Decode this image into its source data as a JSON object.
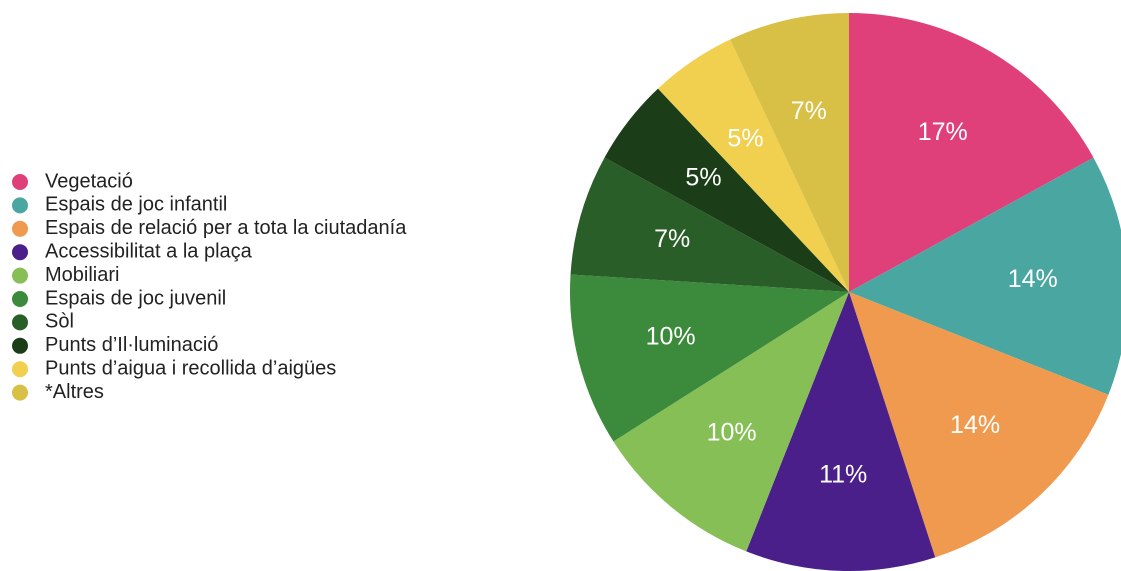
{
  "chart_data": {
    "type": "pie",
    "categories": [
      "Vegetació",
      "Espais de joc infantil",
      "Espais de relació per a tota la ciutadanía",
      "Accessibilitat a la plaça",
      "Mobiliari",
      "Espais de joc juvenil",
      "Sòl",
      "Punts d’Il·luminació",
      "Punts d’aigua i recollida d’aigües",
      "*Altres"
    ],
    "values": [
      17,
      14,
      14,
      11,
      10,
      10,
      7,
      5,
      5,
      7
    ],
    "value_labels": [
      "17%",
      "14%",
      "14%",
      "11%",
      "10%",
      "10%",
      "7%",
      "5%",
      "5%",
      "7%"
    ],
    "colors": [
      "#e0407a",
      "#4aa6a0",
      "#ef9a4e",
      "#4b1f8a",
      "#85bf55",
      "#3c8a3c",
      "#2a5e28",
      "#1b3d17",
      "#f0d04e",
      "#d8bf45"
    ]
  }
}
